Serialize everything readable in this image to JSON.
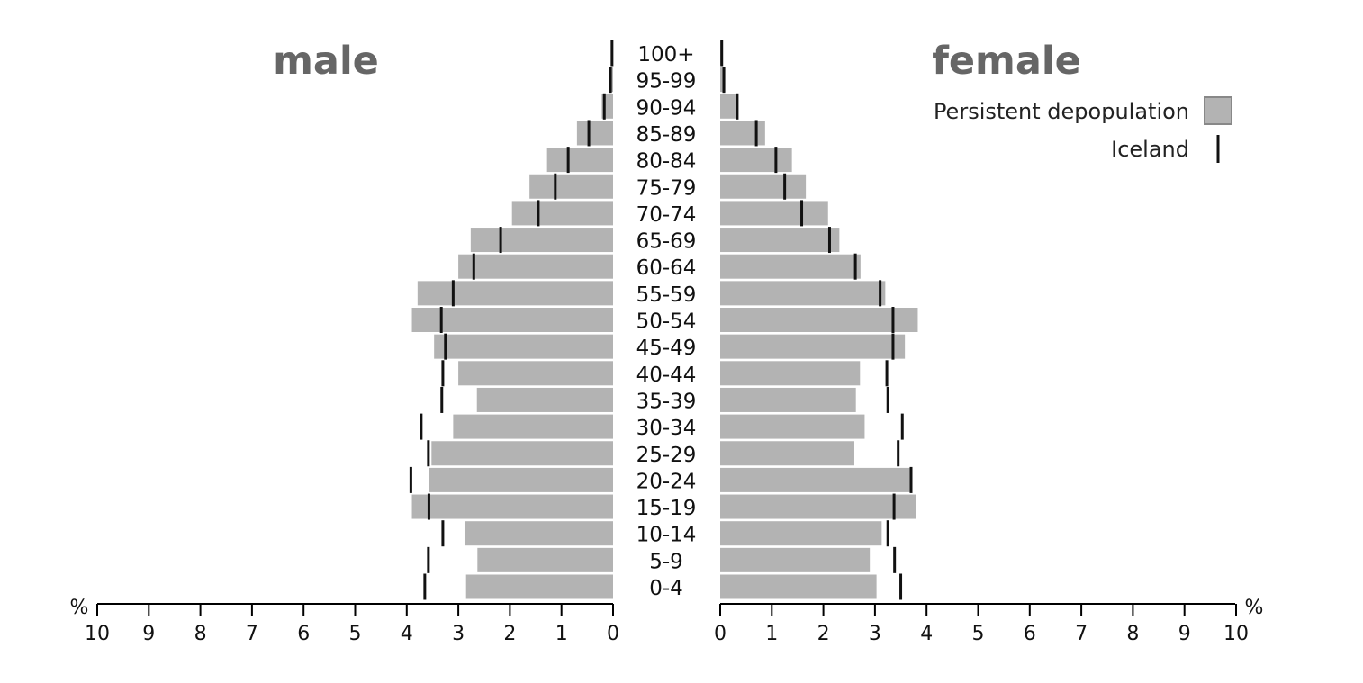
{
  "chart_data": {
    "type": "bar",
    "subtype": "population-pyramid",
    "titles": {
      "left": "male",
      "right": "female"
    },
    "unit": "%",
    "categories": [
      "0-4",
      "5-9",
      "10-14",
      "15-19",
      "20-24",
      "25-29",
      "30-34",
      "35-39",
      "40-44",
      "45-49",
      "50-54",
      "55-59",
      "60-64",
      "65-69",
      "70-74",
      "75-79",
      "80-84",
      "85-89",
      "90-94",
      "95-99",
      "100+"
    ],
    "axis": {
      "xlim": [
        0,
        10
      ],
      "ticks": [
        "0",
        "1",
        "2",
        "3",
        "4",
        "5",
        "6",
        "7",
        "8",
        "9",
        "10"
      ],
      "unit_label": "%",
      "grid": false
    },
    "series": [
      {
        "name": "Persistent depopulation",
        "mark": "bar",
        "color": "#b3b3b3",
        "male": [
          2.85,
          2.63,
          2.88,
          3.9,
          3.57,
          3.52,
          3.1,
          2.64,
          3.0,
          3.47,
          3.9,
          3.79,
          3.0,
          2.76,
          1.96,
          1.62,
          1.28,
          0.7,
          0.22,
          0.03,
          0.0
        ],
        "female": [
          3.03,
          2.9,
          3.13,
          3.8,
          3.72,
          2.6,
          2.8,
          2.63,
          2.71,
          3.58,
          3.83,
          3.2,
          2.72,
          2.31,
          2.09,
          1.66,
          1.39,
          0.87,
          0.31,
          0.1,
          0.03
        ]
      },
      {
        "name": "Iceland",
        "mark": "tick",
        "color": "#111111",
        "male": [
          3.65,
          3.58,
          3.3,
          3.57,
          3.92,
          3.58,
          3.72,
          3.32,
          3.3,
          3.25,
          3.33,
          3.1,
          2.7,
          2.18,
          1.45,
          1.12,
          0.87,
          0.47,
          0.17,
          0.05,
          0.02
        ],
        "female": [
          3.5,
          3.38,
          3.25,
          3.37,
          3.7,
          3.45,
          3.53,
          3.25,
          3.23,
          3.35,
          3.35,
          3.1,
          2.62,
          2.12,
          1.58,
          1.25,
          1.08,
          0.7,
          0.33,
          0.07,
          0.03
        ]
      }
    ],
    "legend": {
      "position": "top-right",
      "items": [
        {
          "label": "Persistent depopulation",
          "symbol": "box"
        },
        {
          "label": "Iceland",
          "symbol": "tick"
        }
      ]
    }
  }
}
